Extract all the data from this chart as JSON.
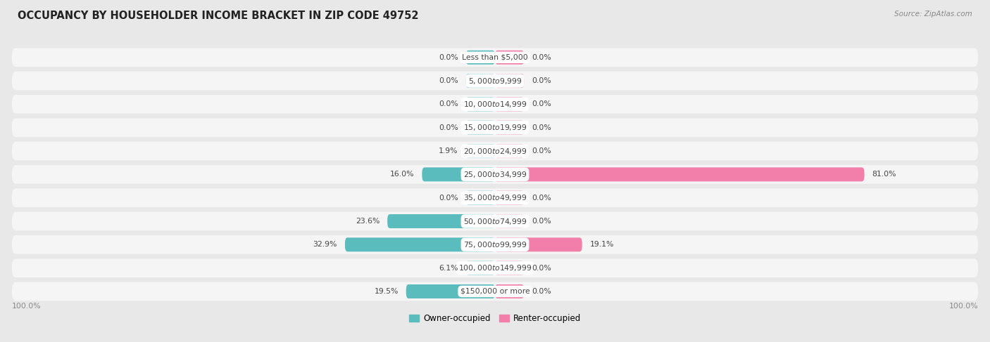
{
  "title": "OCCUPANCY BY HOUSEHOLDER INCOME BRACKET IN ZIP CODE 49752",
  "source": "Source: ZipAtlas.com",
  "categories": [
    "Less than $5,000",
    "$5,000 to $9,999",
    "$10,000 to $14,999",
    "$15,000 to $19,999",
    "$20,000 to $24,999",
    "$25,000 to $34,999",
    "$35,000 to $49,999",
    "$50,000 to $74,999",
    "$75,000 to $99,999",
    "$100,000 to $149,999",
    "$150,000 or more"
  ],
  "owner_values": [
    0.0,
    0.0,
    0.0,
    0.0,
    1.9,
    16.0,
    0.0,
    23.6,
    32.9,
    6.1,
    19.5
  ],
  "renter_values": [
    0.0,
    0.0,
    0.0,
    0.0,
    0.0,
    81.0,
    0.0,
    0.0,
    19.1,
    0.0,
    0.0
  ],
  "owner_color": "#5bbcbe",
  "renter_color": "#f17faa",
  "bg_color": "#e8e8e8",
  "row_bg": "#f5f5f5",
  "label_color": "#444444",
  "title_color": "#222222",
  "source_color": "#888888",
  "axis_label_color": "#888888",
  "max_owner": 100.0,
  "max_renter": 100.0,
  "min_bar_stub": 3.0,
  "legend_owner": "Owner-occupied",
  "legend_renter": "Renter-occupied"
}
